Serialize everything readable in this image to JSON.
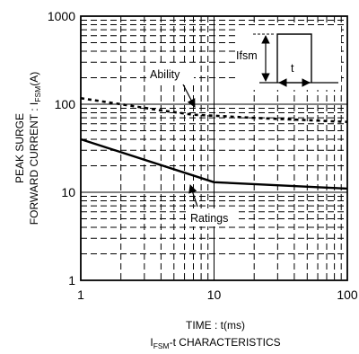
{
  "chart_data": {
    "type": "line",
    "title": "",
    "xlabel": "TIME : t(ms)",
    "xlabel_caption": {
      "prefix": "I",
      "subscript": "FSM",
      "suffix": "-t CHARACTERISTICS"
    },
    "ylabel": {
      "line1": "PEAK SURGE",
      "line2_prefix": "FORWARD CURRENT : I",
      "line2_subscript": "FSM",
      "line2_suffix": "(A)"
    },
    "x_scale": "log",
    "y_scale": "log",
    "xlim": [
      1,
      100
    ],
    "ylim": [
      1,
      1000
    ],
    "x_ticks": [
      1,
      10,
      100
    ],
    "x_tick_labels": [
      "1",
      "10",
      "100"
    ],
    "y_ticks": [
      1,
      10,
      100,
      1000
    ],
    "y_tick_labels": [
      "1",
      "10",
      "100",
      "1000"
    ],
    "grid": true,
    "series": [
      {
        "name": "Ability",
        "style": "dotted",
        "x": [
          1,
          2,
          4,
          7,
          10,
          20,
          50,
          100
        ],
        "y": [
          117,
          100,
          85,
          76,
          74,
          70,
          66,
          63
        ]
      },
      {
        "name": "Ratings",
        "style": "solid",
        "x": [
          1,
          10,
          100
        ],
        "y": [
          40,
          13,
          11
        ]
      }
    ],
    "inset": {
      "height_label": "Ifsm",
      "width_label": "t"
    }
  }
}
